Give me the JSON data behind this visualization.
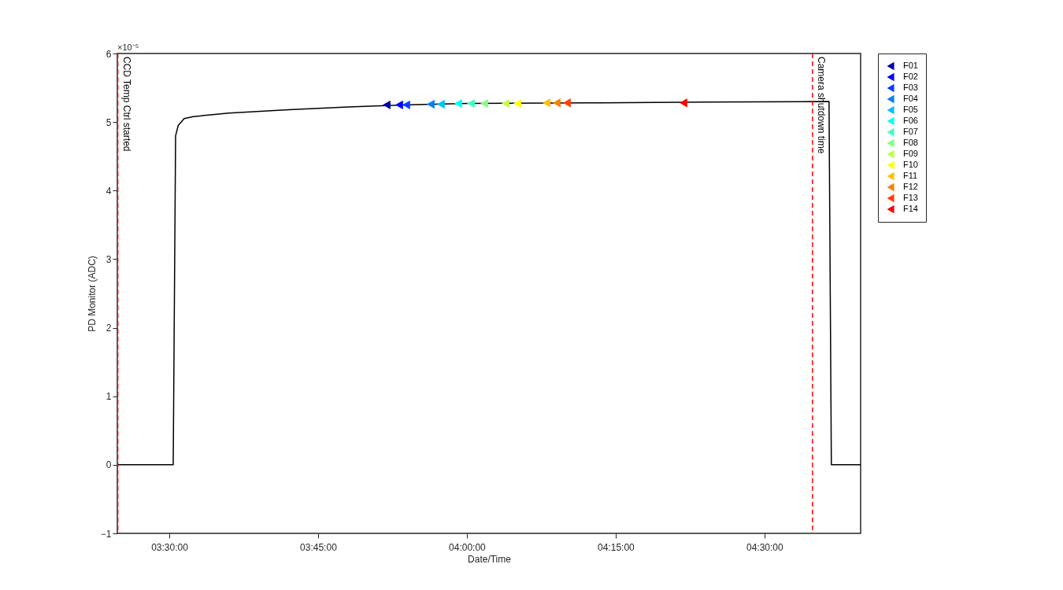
{
  "chart_data": {
    "type": "line",
    "xlabel": "Date/Time",
    "ylabel": "PD Monitor (ADC)",
    "annotations": [
      "×10⁻⁵"
    ],
    "xlim": [
      3.4127,
      4.6616
    ],
    "ylim": [
      -1,
      6
    ],
    "xticks": [
      {
        "value": 3.5,
        "label": "03:30:00"
      },
      {
        "value": 3.75,
        "label": "03:45:00"
      },
      {
        "value": 4.0,
        "label": "04:00:00"
      },
      {
        "value": 4.25,
        "label": "04:15:00"
      },
      {
        "value": 4.5,
        "label": "04:30:00"
      }
    ],
    "yticks": [
      -1,
      0,
      1,
      2,
      3,
      4,
      5,
      6
    ],
    "grid": false,
    "legend": "top right",
    "ref_lines": [
      {
        "axis": "x",
        "value": 3.4135,
        "label": "CCD Temp Ctrl started",
        "color": "#ff0000",
        "line_style": "dashed"
      },
      {
        "axis": "x",
        "value": 4.5807,
        "label": "Camera shutdown time",
        "color": "#ff0000",
        "line_style": "dashed"
      }
    ],
    "series": [
      {
        "color": "#000000",
        "x": [
          3.4127,
          3.5066,
          3.5106,
          3.515,
          3.525,
          3.54,
          3.6,
          3.7,
          3.8,
          3.9,
          4.0,
          4.2,
          4.4,
          4.6085,
          4.6124,
          4.6616
        ],
        "values": [
          0,
          0,
          4.8,
          4.95,
          5.05,
          5.08,
          5.13,
          5.18,
          5.22,
          5.25,
          5.27,
          5.28,
          5.29,
          5.3,
          0,
          0
        ]
      },
      {
        "type": "scatter",
        "marker": "triangle",
        "name": "F01",
        "color": "#0000aa",
        "x": [
          3.8651
        ],
        "values": [
          5.25
        ]
      },
      {
        "type": "scatter",
        "marker": "triangle",
        "name": "F02",
        "color": "#0000ff",
        "x": [
          3.8862
        ],
        "values": [
          5.25
        ]
      },
      {
        "type": "scatter",
        "marker": "triangle",
        "name": "F03",
        "color": "#0040ff",
        "x": [
          3.8981
        ],
        "values": [
          5.25
        ]
      },
      {
        "type": "scatter",
        "marker": "triangle",
        "name": "F04",
        "color": "#0080ff",
        "x": [
          3.9392
        ],
        "values": [
          5.26
        ]
      },
      {
        "type": "scatter",
        "marker": "triangle",
        "name": "F05",
        "color": "#00bfff",
        "x": [
          3.9563
        ],
        "values": [
          5.26
        ]
      },
      {
        "type": "scatter",
        "marker": "triangle",
        "name": "F06",
        "color": "#00ffff",
        "x": [
          3.9854
        ],
        "values": [
          5.27
        ]
      },
      {
        "type": "scatter",
        "marker": "triangle",
        "name": "F07",
        "color": "#40ffbf",
        "x": [
          4.0066
        ],
        "values": [
          5.27
        ]
      },
      {
        "type": "scatter",
        "marker": "triangle",
        "name": "F08",
        "color": "#80ff80",
        "x": [
          4.0291
        ],
        "values": [
          5.27
        ]
      },
      {
        "type": "scatter",
        "marker": "triangle",
        "name": "F09",
        "color": "#bfff40",
        "x": [
          4.0648
        ],
        "values": [
          5.27
        ]
      },
      {
        "type": "scatter",
        "marker": "triangle",
        "name": "F10",
        "color": "#ffff00",
        "x": [
          4.0847
        ],
        "values": [
          5.27
        ]
      },
      {
        "type": "scatter",
        "marker": "triangle",
        "name": "F11",
        "color": "#ffbf00",
        "x": [
          4.1336
        ],
        "values": [
          5.28
        ]
      },
      {
        "type": "scatter",
        "marker": "triangle",
        "name": "F12",
        "color": "#ff8000",
        "x": [
          4.1508
        ],
        "values": [
          5.28
        ]
      },
      {
        "type": "scatter",
        "marker": "triangle",
        "name": "F13",
        "color": "#ff4000",
        "x": [
          4.168
        ],
        "values": [
          5.28
        ]
      },
      {
        "type": "scatter",
        "marker": "triangle",
        "name": "F14",
        "color": "#ff0000",
        "x": [
          4.3638
        ],
        "values": [
          5.28
        ]
      }
    ]
  }
}
